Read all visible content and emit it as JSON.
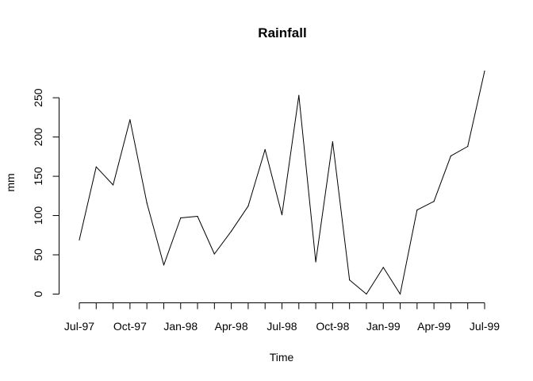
{
  "chart_data": {
    "type": "line",
    "title": "Rainfall",
    "xlabel": "Time",
    "ylabel": "mm",
    "x_tick_labels": [
      "Jul-97",
      "Oct-97",
      "Jan-98",
      "Apr-98",
      "Jul-98",
      "Oct-98",
      "Jan-99",
      "Apr-99",
      "Jul-99"
    ],
    "y_ticks": [
      0,
      50,
      100,
      150,
      200,
      250
    ],
    "x": [
      "Jul-97",
      "Aug-97",
      "Sep-97",
      "Oct-97",
      "Nov-97",
      "Dec-97",
      "Jan-98",
      "Feb-98",
      "Mar-98",
      "Apr-98",
      "May-98",
      "Jun-98",
      "Jul-98",
      "Aug-98",
      "Sep-98",
      "Oct-98",
      "Nov-98",
      "Dec-98",
      "Jan-99",
      "Feb-99",
      "Mar-99",
      "Apr-99",
      "May-99",
      "Jun-99",
      "Jul-99"
    ],
    "values": [
      69,
      162,
      139,
      222,
      116,
      37,
      97,
      99,
      51,
      80,
      112,
      184,
      101,
      253,
      41,
      194,
      18,
      0,
      34,
      0,
      107,
      118,
      176,
      188,
      284
    ],
    "ylim": [
      0,
      284
    ],
    "grid": false,
    "line_color": "#000000"
  }
}
